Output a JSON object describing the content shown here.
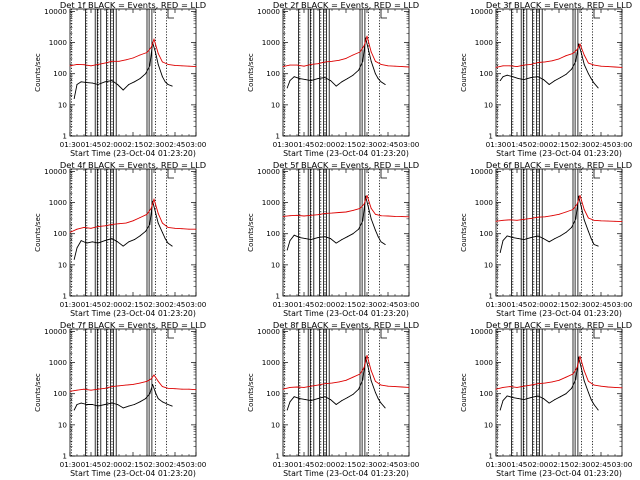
{
  "figure": {
    "x_tick_labels": [
      "01:30",
      "01:45",
      "02:00",
      "02:15",
      "02:30",
      "02:45",
      "03:00"
    ],
    "y_tick_labels": [
      "1",
      "10",
      "100",
      "1000",
      "10000"
    ],
    "ylabel": "Counts/sec",
    "xlabel": "Start Time (23-Oct-04 01:23:20)",
    "colors": {
      "events": "#000000",
      "lld": "#dd0000",
      "axes": "#000000"
    }
  },
  "chart_data": [
    {
      "type": "line",
      "title": "Det 1f BLACK = Events, RED = LLD",
      "xlabel": "Start Time (23-Oct-04 01:23:20)",
      "ylabel": "Counts/sec",
      "x_unit": "minutes after 01:30",
      "xlim": [
        0,
        90
      ],
      "ylim": [
        1,
        12000
      ],
      "yscale": "log",
      "series": [
        {
          "name": "Events",
          "color": "#000000",
          "x": [
            3,
            5,
            8,
            12,
            16,
            20,
            25,
            30,
            34,
            38,
            42,
            46,
            50,
            54,
            57,
            59,
            61,
            63,
            66,
            68,
            70,
            73
          ],
          "values": [
            16,
            45,
            55,
            52,
            50,
            45,
            55,
            60,
            45,
            30,
            45,
            55,
            70,
            100,
            180,
            1000,
            500,
            200,
            80,
            55,
            45,
            40
          ]
        },
        {
          "name": "LLD",
          "color": "#dd0000",
          "x": [
            0,
            5,
            10,
            15,
            20,
            25,
            30,
            35,
            40,
            45,
            50,
            55,
            58,
            60,
            63,
            66,
            70,
            75,
            80,
            85,
            90
          ],
          "values": [
            180,
            200,
            195,
            180,
            200,
            220,
            250,
            250,
            280,
            320,
            400,
            480,
            700,
            1300,
            450,
            240,
            200,
            185,
            180,
            175,
            170
          ]
        }
      ]
    },
    {
      "type": "line",
      "title": "Det 2f BLACK = Events, RED = LLD",
      "xlabel": "Start Time (23-Oct-04 01:23:20)",
      "ylabel": "Counts/sec",
      "x_unit": "minutes after 01:30",
      "xlim": [
        0,
        90
      ],
      "ylim": [
        1,
        12000
      ],
      "yscale": "log",
      "series": [
        {
          "name": "Events",
          "color": "#000000",
          "x": [
            3,
            5,
            8,
            12,
            16,
            20,
            25,
            30,
            34,
            38,
            42,
            46,
            50,
            54,
            57,
            59,
            61,
            63,
            66,
            68,
            70,
            73
          ],
          "values": [
            35,
            60,
            80,
            70,
            65,
            60,
            70,
            75,
            60,
            40,
            55,
            70,
            90,
            130,
            250,
            1400,
            600,
            250,
            100,
            70,
            55,
            45
          ]
        },
        {
          "name": "LLD",
          "color": "#dd0000",
          "x": [
            0,
            5,
            10,
            15,
            20,
            25,
            30,
            35,
            40,
            45,
            50,
            55,
            58,
            60,
            63,
            66,
            70,
            75,
            80,
            85,
            90
          ],
          "values": [
            170,
            190,
            190,
            175,
            200,
            210,
            240,
            250,
            270,
            310,
            400,
            500,
            800,
            1600,
            500,
            250,
            200,
            180,
            175,
            170,
            165
          ]
        }
      ]
    },
    {
      "type": "line",
      "title": "Det 3f BLACK = Events, RED = LLD",
      "xlabel": "Start Time (23-Oct-04 01:23:20)",
      "ylabel": "Counts/sec",
      "x_unit": "minutes after 01:30",
      "xlim": [
        0,
        90
      ],
      "ylim": [
        1,
        12000
      ],
      "yscale": "log",
      "series": [
        {
          "name": "Events",
          "color": "#000000",
          "x": [
            3,
            5,
            8,
            12,
            16,
            20,
            25,
            30,
            34,
            38,
            42,
            46,
            50,
            54,
            57,
            59,
            61,
            63,
            66,
            68,
            70,
            73
          ],
          "values": [
            60,
            80,
            90,
            80,
            70,
            65,
            75,
            80,
            65,
            45,
            60,
            75,
            95,
            140,
            250,
            900,
            450,
            200,
            100,
            70,
            50,
            35
          ]
        },
        {
          "name": "LLD",
          "color": "#dd0000",
          "x": [
            0,
            5,
            10,
            15,
            20,
            25,
            30,
            35,
            40,
            45,
            50,
            55,
            58,
            60,
            63,
            66,
            70,
            75,
            80,
            85,
            90
          ],
          "values": [
            160,
            180,
            180,
            170,
            190,
            200,
            230,
            240,
            260,
            300,
            380,
            450,
            600,
            900,
            400,
            220,
            190,
            175,
            170,
            165,
            160
          ]
        }
      ]
    },
    {
      "type": "line",
      "title": "Det 4f BLACK = Events, RED = LLD",
      "xlabel": "Start Time (23-Oct-04 01:23:20)",
      "ylabel": "Counts/sec",
      "x_unit": "minutes after 01:30",
      "xlim": [
        0,
        90
      ],
      "ylim": [
        1,
        12000
      ],
      "yscale": "log",
      "series": [
        {
          "name": "Events",
          "color": "#000000",
          "x": [
            3,
            5,
            8,
            12,
            16,
            20,
            25,
            30,
            34,
            38,
            42,
            46,
            50,
            54,
            57,
            59,
            61,
            63,
            66,
            68,
            70,
            73
          ],
          "values": [
            15,
            35,
            60,
            50,
            55,
            50,
            60,
            70,
            55,
            40,
            55,
            65,
            85,
            120,
            200,
            1100,
            500,
            220,
            110,
            70,
            50,
            40
          ]
        },
        {
          "name": "LLD",
          "color": "#dd0000",
          "x": [
            0,
            5,
            10,
            15,
            20,
            25,
            30,
            35,
            40,
            45,
            50,
            55,
            58,
            60,
            63,
            66,
            70,
            75,
            80,
            85,
            90
          ],
          "values": [
            110,
            140,
            160,
            150,
            170,
            180,
            200,
            210,
            220,
            260,
            330,
            420,
            650,
            1300,
            450,
            220,
            160,
            150,
            145,
            140,
            140
          ]
        }
      ]
    },
    {
      "type": "line",
      "title": "Det 5f BLACK = Events, RED = LLD",
      "xlabel": "Start Time (23-Oct-04 01:23:20)",
      "ylabel": "Counts/sec",
      "x_unit": "minutes after 01:30",
      "xlim": [
        0,
        90
      ],
      "ylim": [
        1,
        12000
      ],
      "yscale": "log",
      "series": [
        {
          "name": "Events",
          "color": "#000000",
          "x": [
            3,
            5,
            8,
            12,
            16,
            20,
            25,
            30,
            34,
            38,
            42,
            46,
            50,
            54,
            57,
            59,
            61,
            63,
            66,
            68,
            70,
            73
          ],
          "values": [
            30,
            60,
            90,
            75,
            70,
            65,
            75,
            80,
            70,
            50,
            65,
            80,
            100,
            140,
            260,
            1600,
            700,
            300,
            130,
            80,
            55,
            45
          ]
        },
        {
          "name": "LLD",
          "color": "#dd0000",
          "x": [
            0,
            5,
            10,
            15,
            20,
            25,
            30,
            35,
            40,
            45,
            50,
            55,
            58,
            60,
            63,
            66,
            70,
            75,
            80,
            85,
            90
          ],
          "values": [
            360,
            380,
            390,
            370,
            390,
            410,
            450,
            460,
            480,
            500,
            560,
            650,
            900,
            1700,
            650,
            420,
            380,
            370,
            360,
            355,
            350
          ]
        }
      ]
    },
    {
      "type": "line",
      "title": "Det 6f BLACK = Events, RED = LLD",
      "xlabel": "Start Time (23-Oct-04 01:23:20)",
      "ylabel": "Counts/sec",
      "x_unit": "minutes after 01:30",
      "xlim": [
        0,
        90
      ],
      "ylim": [
        1,
        12000
      ],
      "yscale": "log",
      "series": [
        {
          "name": "Events",
          "color": "#000000",
          "x": [
            3,
            5,
            8,
            12,
            16,
            20,
            25,
            30,
            34,
            38,
            42,
            46,
            50,
            54,
            57,
            59,
            61,
            63,
            66,
            68,
            70,
            73
          ],
          "values": [
            25,
            60,
            85,
            75,
            70,
            65,
            75,
            85,
            70,
            55,
            70,
            85,
            110,
            160,
            300,
            1600,
            700,
            280,
            120,
            70,
            45,
            40
          ]
        },
        {
          "name": "LLD",
          "color": "#dd0000",
          "x": [
            0,
            5,
            10,
            15,
            20,
            25,
            30,
            35,
            40,
            45,
            50,
            55,
            58,
            60,
            63,
            66,
            70,
            75,
            80,
            85,
            90
          ],
          "values": [
            250,
            270,
            280,
            270,
            290,
            310,
            340,
            350,
            380,
            420,
            500,
            600,
            900,
            1700,
            600,
            320,
            270,
            260,
            255,
            250,
            245
          ]
        }
      ]
    },
    {
      "type": "line",
      "title": "Det 7f BLACK = Events, RED = LLD",
      "xlabel": "Start Time (23-Oct-04 01:23:20)",
      "ylabel": "Counts/sec",
      "x_unit": "minutes after 01:30",
      "xlim": [
        0,
        90
      ],
      "ylim": [
        1,
        12000
      ],
      "yscale": "log",
      "series": [
        {
          "name": "Events",
          "color": "#000000",
          "x": [
            3,
            5,
            8,
            12,
            16,
            20,
            25,
            30,
            34,
            38,
            42,
            46,
            50,
            54,
            57,
            59,
            61,
            63,
            66,
            68,
            70,
            73
          ],
          "values": [
            30,
            45,
            50,
            45,
            45,
            40,
            45,
            50,
            45,
            35,
            40,
            45,
            55,
            70,
            100,
            200,
            110,
            70,
            55,
            50,
            45,
            40
          ]
        },
        {
          "name": "LLD",
          "color": "#dd0000",
          "x": [
            0,
            5,
            10,
            15,
            20,
            25,
            30,
            35,
            40,
            45,
            50,
            55,
            58,
            60,
            63,
            66,
            70,
            75,
            80,
            85,
            90
          ],
          "values": [
            120,
            130,
            140,
            130,
            140,
            150,
            170,
            180,
            190,
            200,
            220,
            250,
            300,
            400,
            250,
            170,
            150,
            145,
            140,
            140,
            135
          ]
        }
      ]
    },
    {
      "type": "line",
      "title": "Det 8f BLACK = Events, RED = LLD",
      "xlabel": "Start Time (23-Oct-04 01:23:20)",
      "ylabel": "Counts/sec",
      "x_unit": "minutes after 01:30",
      "xlim": [
        0,
        90
      ],
      "ylim": [
        1,
        12000
      ],
      "yscale": "log",
      "series": [
        {
          "name": "Events",
          "color": "#000000",
          "x": [
            3,
            5,
            8,
            12,
            16,
            20,
            25,
            30,
            34,
            38,
            42,
            46,
            50,
            54,
            57,
            59,
            61,
            63,
            66,
            68,
            70,
            73
          ],
          "values": [
            30,
            55,
            80,
            70,
            65,
            60,
            70,
            80,
            65,
            45,
            60,
            75,
            95,
            140,
            280,
            1500,
            650,
            260,
            110,
            70,
            50,
            35
          ]
        },
        {
          "name": "LLD",
          "color": "#dd0000",
          "x": [
            0,
            5,
            10,
            15,
            20,
            25,
            30,
            35,
            40,
            45,
            50,
            55,
            58,
            60,
            63,
            66,
            70,
            75,
            80,
            85,
            90
          ],
          "values": [
            140,
            160,
            165,
            160,
            175,
            190,
            210,
            220,
            240,
            270,
            340,
            430,
            700,
            1700,
            550,
            250,
            190,
            175,
            170,
            165,
            160
          ]
        }
      ]
    },
    {
      "type": "line",
      "title": "Det 9f BLACK = Events, RED = LLD",
      "xlabel": "Start Time (23-Oct-04 01:23:20)",
      "ylabel": "Counts/sec",
      "x_unit": "minutes after 01:30",
      "xlim": [
        0,
        90
      ],
      "ylim": [
        1,
        12000
      ],
      "yscale": "log",
      "series": [
        {
          "name": "Events",
          "color": "#000000",
          "x": [
            3,
            5,
            8,
            12,
            16,
            20,
            25,
            30,
            34,
            38,
            42,
            46,
            50,
            54,
            57,
            59,
            61,
            63,
            66,
            68,
            70,
            73
          ],
          "values": [
            30,
            60,
            85,
            75,
            70,
            65,
            75,
            85,
            70,
            50,
            65,
            80,
            100,
            150,
            290,
            1500,
            650,
            260,
            110,
            65,
            45,
            30
          ]
        },
        {
          "name": "LLD",
          "color": "#dd0000",
          "x": [
            0,
            5,
            10,
            15,
            20,
            25,
            30,
            35,
            40,
            45,
            50,
            55,
            58,
            60,
            63,
            66,
            70,
            75,
            80,
            85,
            90
          ],
          "values": [
            140,
            160,
            170,
            160,
            175,
            190,
            210,
            220,
            240,
            270,
            340,
            430,
            700,
            1600,
            550,
            250,
            190,
            175,
            165,
            160,
            155
          ]
        }
      ]
    }
  ],
  "events": {
    "solid_lines_minutes": [
      11,
      18,
      19.5,
      22,
      26,
      29,
      31,
      33,
      55,
      56.5,
      58.5
    ],
    "dotted_lines_minutes": [
      1,
      12,
      20,
      27,
      30,
      61,
      69
    ]
  }
}
